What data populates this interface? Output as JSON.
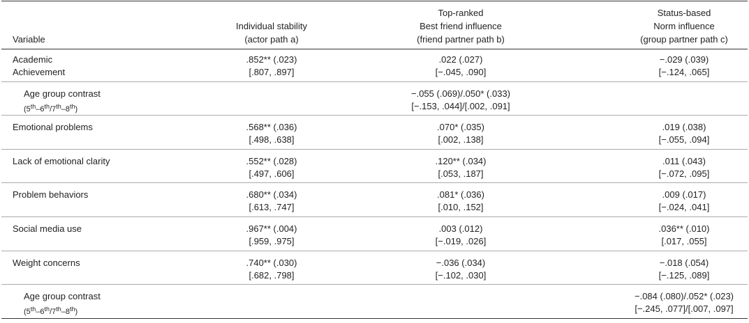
{
  "table": {
    "header": [
      [
        "Variable"
      ],
      [
        "Individual stability",
        "(actor path a)"
      ],
      [
        "Top-ranked",
        "Best friend influence",
        "(friend partner path b)"
      ],
      [
        "Status-based",
        "Norm influence",
        "(group partner path c)"
      ]
    ],
    "rows": [
      {
        "label": [
          "Academic",
          "Achievement"
        ],
        "cells": [
          [
            ".852** (.023)",
            "[.807, .897]"
          ],
          [
            ".022 (.027)",
            "[−.045, .090]"
          ],
          [
            "−.029 (.039)",
            "[−.124, .065]"
          ]
        ]
      },
      {
        "label": [
          "Age group contrast"
        ],
        "sublabel": [
          "(5",
          "th",
          "–6",
          "th",
          "/7",
          "th",
          "–8",
          "th",
          ")"
        ],
        "cells": [
          null,
          [
            "−.055 (.069)/.050* (.033)",
            "[−.153, .044]/[.002, .091]"
          ],
          null
        ]
      },
      {
        "label": [
          "Emotional problems"
        ],
        "cells": [
          [
            ".568** (.036)",
            "[.498, .638]"
          ],
          [
            ".070* (.035)",
            "[.002, .138]"
          ],
          [
            ".019 (.038)",
            "[−.055, .094]"
          ]
        ]
      },
      {
        "label": [
          "Lack of emotional clarity"
        ],
        "cells": [
          [
            ".552** (.028)",
            "[.497, .606]"
          ],
          [
            ".120** (.034)",
            "[.053, .187]"
          ],
          [
            ".011 (.043)",
            "[−.072, .095]"
          ]
        ]
      },
      {
        "label": [
          "Problem behaviors"
        ],
        "cells": [
          [
            ".680** (.034)",
            "[.613, .747]"
          ],
          [
            ".081* (.036)",
            "[.010, .152]"
          ],
          [
            ".009 (.017)",
            "[−.024, .041]"
          ]
        ]
      },
      {
        "label": [
          "Social media use"
        ],
        "cells": [
          [
            ".967** (.004)",
            "[.959, .975]"
          ],
          [
            ".003 (.012)",
            "[−.019, .026]"
          ],
          [
            ".036** (.010)",
            "[.017, .055]"
          ]
        ]
      },
      {
        "label": [
          "Weight concerns"
        ],
        "cells": [
          [
            ".740** (.030)",
            "[.682, .798]"
          ],
          [
            "−.036 (.034)",
            "[−.102, .030]"
          ],
          [
            "−.018 (.054)",
            "[−.125, .089]"
          ]
        ]
      },
      {
        "label": [
          "Age group contrast"
        ],
        "sublabel": [
          "(5",
          "th",
          "–6",
          "th",
          "/7",
          "th",
          "–8",
          "th",
          ")"
        ],
        "cells": [
          null,
          null,
          [
            "−.084 (.080)/.052* (.023)",
            "[−.245, .077]/[.007, .097]"
          ]
        ]
      }
    ]
  }
}
